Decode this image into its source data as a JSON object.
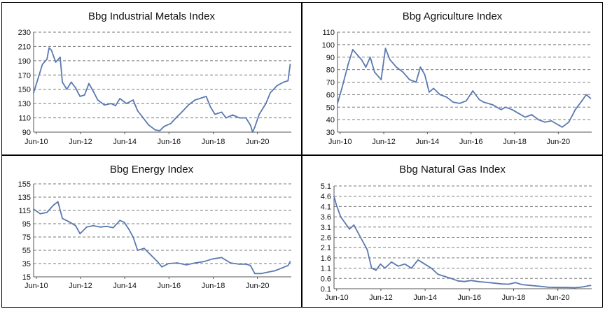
{
  "chart_data": [
    {
      "type": "line",
      "title": "Bbg Industrial Metals Index",
      "ylim": [
        90,
        230
      ],
      "yticks": [
        "230",
        "210",
        "190",
        "170",
        "150",
        "130",
        "110",
        "90"
      ],
      "xticks": [
        "Jun-10",
        "Jun-12",
        "Jun-14",
        "Jun-16",
        "Jun-18",
        "Jun-20"
      ],
      "grid": true,
      "color": "#5b79b0",
      "x": [
        2010.3,
        2010.5,
        2010.7,
        2010.9,
        2011.0,
        2011.1,
        2011.3,
        2011.5,
        2011.6,
        2011.8,
        2012.0,
        2012.2,
        2012.4,
        2012.6,
        2012.8,
        2013.0,
        2013.2,
        2013.5,
        2013.8,
        2014.0,
        2014.2,
        2014.5,
        2014.8,
        2015.0,
        2015.2,
        2015.5,
        2015.8,
        2016.0,
        2016.2,
        2016.5,
        2016.8,
        2017.0,
        2017.3,
        2017.6,
        2017.9,
        2018.1,
        2018.3,
        2018.5,
        2018.8,
        2019.0,
        2019.3,
        2019.6,
        2019.9,
        2020.1,
        2020.2,
        2020.3,
        2020.5,
        2020.8,
        2021.0,
        2021.3,
        2021.6,
        2021.8,
        2021.9
      ],
      "y": [
        145,
        165,
        185,
        192,
        208,
        205,
        188,
        195,
        160,
        150,
        160,
        152,
        140,
        142,
        158,
        147,
        135,
        128,
        130,
        127,
        137,
        130,
        135,
        120,
        112,
        100,
        93,
        92,
        98,
        102,
        112,
        118,
        128,
        135,
        138,
        140,
        125,
        115,
        118,
        110,
        114,
        110,
        110,
        100,
        90,
        97,
        115,
        130,
        145,
        155,
        160,
        162,
        185
      ]
    },
    {
      "type": "line",
      "title": "Bbg Agriculture Index",
      "ylim": [
        30,
        110
      ],
      "yticks": [
        "110",
        "100",
        "90",
        "80",
        "70",
        "60",
        "50",
        "40",
        "30"
      ],
      "xticks": [
        "Jun-10",
        "Jun-12",
        "Jun-14",
        "Jun-16",
        "Jun-18",
        "Jun-20"
      ],
      "grid": true,
      "color": "#5b79b0",
      "x": [
        2010.3,
        2010.5,
        2010.8,
        2011.0,
        2011.2,
        2011.4,
        2011.6,
        2011.8,
        2012.0,
        2012.3,
        2012.5,
        2012.7,
        2013.0,
        2013.3,
        2013.6,
        2013.9,
        2014.1,
        2014.3,
        2014.5,
        2014.7,
        2015.0,
        2015.3,
        2015.6,
        2015.9,
        2016.2,
        2016.5,
        2016.8,
        2017.0,
        2017.4,
        2017.8,
        2018.0,
        2018.3,
        2018.6,
        2018.9,
        2019.2,
        2019.5,
        2019.8,
        2020.1,
        2020.3,
        2020.6,
        2020.9,
        2021.2,
        2021.5,
        2021.7,
        2021.9
      ],
      "y": [
        53,
        65,
        85,
        96,
        92,
        88,
        82,
        90,
        78,
        72,
        97,
        88,
        82,
        78,
        72,
        70,
        82,
        76,
        62,
        65,
        60,
        58,
        54,
        53,
        55,
        63,
        56,
        54,
        52,
        48,
        50,
        48,
        45,
        42,
        44,
        40,
        38,
        39,
        37,
        34,
        38,
        48,
        55,
        60,
        57
      ]
    },
    {
      "type": "line",
      "title": "Bbg Energy Index",
      "ylim": [
        15,
        155
      ],
      "yticks": [
        "155",
        "135",
        "115",
        "95",
        "75",
        "55",
        "35",
        "15"
      ],
      "xticks": [
        "Jun-10",
        "Jun-12",
        "Jun-14",
        "Jun-16",
        "Jun-18",
        "Jun-20"
      ],
      "grid": true,
      "color": "#5b79b0",
      "x": [
        2010.3,
        2010.6,
        2010.9,
        2011.2,
        2011.4,
        2011.6,
        2011.9,
        2012.2,
        2012.4,
        2012.7,
        2013.0,
        2013.3,
        2013.6,
        2013.9,
        2014.2,
        2014.4,
        2014.6,
        2014.8,
        2015.0,
        2015.3,
        2015.6,
        2015.9,
        2016.1,
        2016.4,
        2016.8,
        2017.2,
        2017.6,
        2018.0,
        2018.4,
        2018.8,
        2019.2,
        2019.6,
        2019.9,
        2020.1,
        2020.3,
        2020.6,
        2020.9,
        2021.2,
        2021.5,
        2021.8,
        2021.9
      ],
      "y": [
        117,
        110,
        112,
        123,
        128,
        103,
        98,
        92,
        80,
        90,
        92,
        90,
        91,
        89,
        100,
        97,
        87,
        75,
        55,
        58,
        48,
        38,
        30,
        35,
        36,
        33,
        36,
        38,
        42,
        44,
        36,
        34,
        34,
        32,
        20,
        20,
        22,
        24,
        28,
        32,
        38
      ]
    },
    {
      "type": "line",
      "title": "Bbg Natural Gas Index",
      "ylim": [
        0.1,
        5.1
      ],
      "yticks": [
        "5.1",
        "4.6",
        "4.1",
        "3.6",
        "3.1",
        "2.6",
        "2.1",
        "1.6",
        "1.1",
        "0.6",
        "0.1"
      ],
      "xticks": [
        "Jun-10",
        "Jun-12",
        "Jun-14",
        "Jun-16",
        "Jun-18",
        "Jun-20"
      ],
      "grid": true,
      "color": "#5b79b0",
      "x": [
        2010.3,
        2010.4,
        2010.6,
        2010.8,
        2011.0,
        2011.2,
        2011.5,
        2011.8,
        2012.0,
        2012.2,
        2012.4,
        2012.6,
        2012.9,
        2013.2,
        2013.5,
        2013.8,
        2014.1,
        2014.4,
        2014.7,
        2015.0,
        2015.3,
        2015.6,
        2015.9,
        2016.2,
        2016.5,
        2016.8,
        2017.1,
        2017.5,
        2017.9,
        2018.2,
        2018.5,
        2018.8,
        2019.2,
        2019.6,
        2020.0,
        2020.4,
        2020.8,
        2021.2,
        2021.5,
        2021.9
      ],
      "y": [
        4.6,
        4.2,
        3.6,
        3.3,
        3.0,
        3.2,
        2.6,
        2.0,
        1.1,
        1.0,
        1.3,
        1.1,
        1.4,
        1.2,
        1.3,
        1.1,
        1.5,
        1.3,
        1.1,
        0.8,
        0.7,
        0.6,
        0.48,
        0.45,
        0.5,
        0.45,
        0.42,
        0.38,
        0.33,
        0.32,
        0.4,
        0.3,
        0.26,
        0.22,
        0.17,
        0.16,
        0.16,
        0.15,
        0.18,
        0.26
      ]
    }
  ]
}
